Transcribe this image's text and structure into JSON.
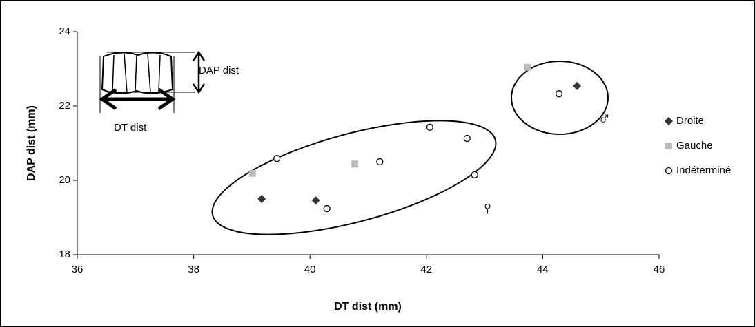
{
  "chart_data": {
    "type": "scatter",
    "x_label": "DT dist (mm)",
    "y_label": "DAP dist (mm)",
    "xlim": [
      36,
      46
    ],
    "xticks": [
      36,
      38,
      40,
      42,
      44,
      46
    ],
    "ylim": [
      18,
      24
    ],
    "yticks": [
      18,
      20,
      22,
      24
    ],
    "series": [
      {
        "name": "Droite",
        "color": "#333333",
        "marker": "diamond",
        "x": [
          39.17,
          40.1,
          44.59
        ],
        "values": [
          19.5,
          19.46,
          22.54
        ]
      },
      {
        "name": "Gauche",
        "color": "#bbbbbb",
        "marker": "square",
        "x": [
          39.01,
          40.77,
          43.74
        ],
        "values": [
          20.19,
          20.44,
          23.04
        ]
      },
      {
        "name": "Indéterminé",
        "color": "#000000",
        "marker": "circle",
        "x": [
          39.43,
          40.29,
          41.2,
          42.06,
          42.7,
          42.83,
          44.28
        ],
        "values": [
          20.59,
          19.24,
          20.5,
          21.43,
          21.13,
          20.15,
          22.33
        ]
      }
    ],
    "annotations": [
      "DAP dist",
      "DT dist",
      "♂",
      "♀"
    ]
  }
}
